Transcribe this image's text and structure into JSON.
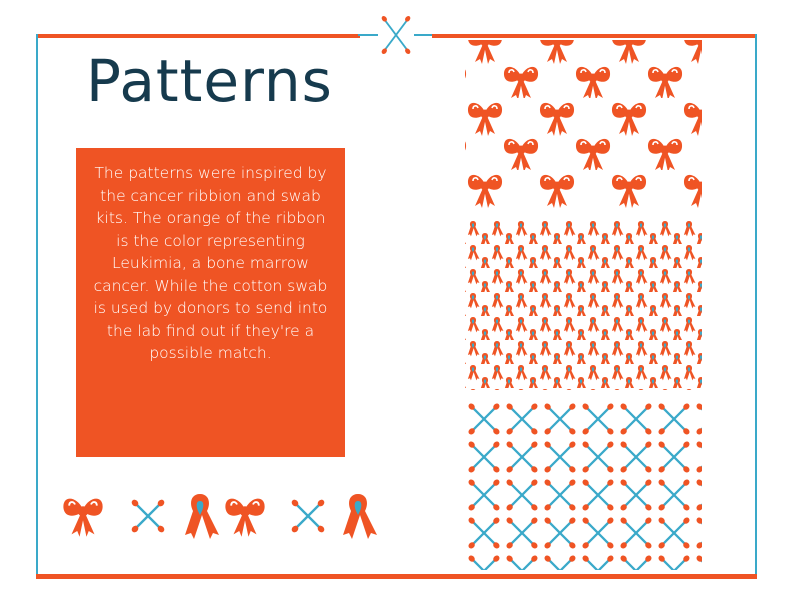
{
  "page": {
    "title": "Patterns",
    "description": "The patterns were inspired by the cancer ribbion and swab kits. The orange of the ribbon is the color representing Leukimia, a bone marrow cancer. While the cotton swab is used by donors to send into the lab find out if they're a possible match."
  },
  "colors": {
    "orange": "#ef5424",
    "teal": "#3aa9c9",
    "navy": "#163a4d",
    "white": "#ffffff"
  },
  "patterns": [
    {
      "name": "bow-pattern",
      "motif": "bow-icon"
    },
    {
      "name": "ribbon-pattern",
      "motif": "awareness-ribbon-icon"
    },
    {
      "name": "swab-pattern",
      "motif": "cotton-swab-icon"
    }
  ],
  "icon_row": [
    "bow-icon",
    "cotton-swab-icon",
    "awareness-ribbon-icon",
    "bow-icon",
    "cotton-swab-icon",
    "awareness-ribbon-icon"
  ]
}
